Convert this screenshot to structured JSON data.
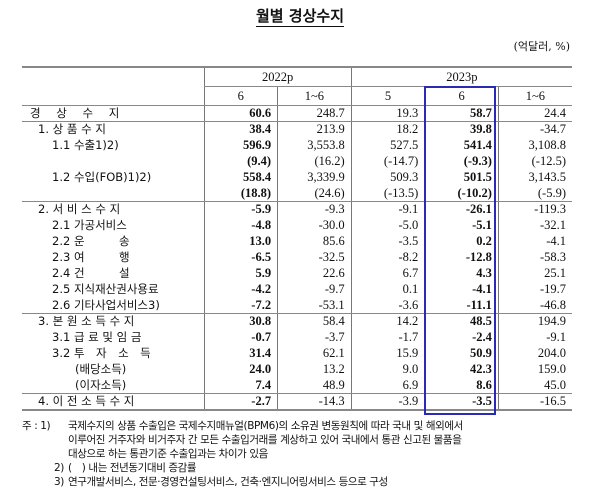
{
  "title": "월별 경상수지",
  "unit": "(억달러, %)",
  "header": {
    "years": [
      "2022p",
      "2023p"
    ],
    "months": [
      "6",
      "1~6",
      "5",
      "6",
      "1~6"
    ]
  },
  "rows": [
    {
      "label": "경 상 수 지",
      "indent": 0,
      "values": [
        "60.6",
        "248.7",
        "19.3",
        "58.7",
        "24.4"
      ]
    },
    {
      "label": "1. 상 품 수 지",
      "indent": 1,
      "values": [
        "38.4",
        "213.9",
        "18.2",
        "39.8",
        "-34.7"
      ]
    },
    {
      "label": "1.1 수출1)2)",
      "indent": 2,
      "values": [
        "596.9",
        "3,553.8",
        "527.5",
        "541.4",
        "3,108.8"
      ]
    },
    {
      "label": "",
      "indent": 2,
      "values": [
        "(9.4)",
        "(16.2)",
        "(-14.7)",
        "(-9.3)",
        "(-12.5)"
      ]
    },
    {
      "label": "1.2 수입(FOB)1)2)",
      "indent": 2,
      "values": [
        "558.4",
        "3,339.9",
        "509.3",
        "501.5",
        "3,143.5"
      ]
    },
    {
      "label": "",
      "indent": 2,
      "values": [
        "(18.8)",
        "(24.6)",
        "(-13.5)",
        "(-10.2)",
        "(-5.9)"
      ]
    },
    {
      "label": "2. 서 비 스 수 지",
      "indent": 1,
      "values": [
        "-5.9",
        "-9.3",
        "-9.1",
        "-26.1",
        "-119.3"
      ]
    },
    {
      "label": "2.1 가공서비스",
      "indent": 2,
      "values": [
        "-4.8",
        "-30.0",
        "-5.0",
        "-5.1",
        "-32.1"
      ]
    },
    {
      "label": "2.2 운　　　송",
      "indent": 2,
      "values": [
        "13.0",
        "85.6",
        "-3.5",
        "0.2",
        "-4.1"
      ]
    },
    {
      "label": "2.3 여　　　행",
      "indent": 2,
      "values": [
        "-6.5",
        "-32.5",
        "-8.2",
        "-12.8",
        "-58.3"
      ]
    },
    {
      "label": "2.4 건　　　설",
      "indent": 2,
      "values": [
        "5.9",
        "22.6",
        "6.7",
        "4.3",
        "25.1"
      ]
    },
    {
      "label": "2.5 지식재산권사용료",
      "indent": 2,
      "values": [
        "-4.2",
        "-9.7",
        "0.1",
        "-4.1",
        "-19.7"
      ]
    },
    {
      "label": "2.6 기타사업서비스3)",
      "indent": 2,
      "values": [
        "-7.2",
        "-53.1",
        "-3.6",
        "-11.1",
        "-46.8"
      ]
    },
    {
      "label": "3. 본 원 소 득 수 지",
      "indent": 1,
      "values": [
        "30.8",
        "58.4",
        "14.2",
        "48.5",
        "194.9"
      ]
    },
    {
      "label": "3.1 급 료 및 임 금",
      "indent": 2,
      "values": [
        "-0.7",
        "-3.7",
        "-1.7",
        "-2.4",
        "-9.1"
      ]
    },
    {
      "label": "3.2 투　자　소　득",
      "indent": 2,
      "values": [
        "31.4",
        "62.1",
        "15.9",
        "50.9",
        "204.0"
      ]
    },
    {
      "label": "(배당소득)",
      "indent": 3,
      "values": [
        "24.0",
        "13.2",
        "9.0",
        "42.3",
        "159.0"
      ]
    },
    {
      "label": "(이자소득)",
      "indent": 3,
      "values": [
        "7.4",
        "48.9",
        "6.9",
        "8.6",
        "45.0"
      ]
    },
    {
      "label": "4. 이 전 소 득 수 지",
      "indent": 1,
      "values": [
        "-2.7",
        "-14.3",
        "-3.9",
        "-3.5",
        "-16.5"
      ]
    }
  ],
  "notes": {
    "prefix": "주 : 1)",
    "n1_lines": [
      "국제수지의 상품 수출입은 국제수지매뉴얼(BPM6)의 소유권 변동원칙에 따라 국내 및 해외에서",
      "이루어진 거주자와 비거주자 간 모든 수출입거래를 계상하고 있어 국내에서 통관 신고된 물품을",
      "대상으로 하는 통관기준 수출입과는 차이가 있음"
    ],
    "n2_num": "2)",
    "n2": "(　) 내는 전년동기대비 증감률",
    "n3_num": "3)",
    "n3": "연구개발서비스, 전문·경영컨설팅서비스, 건축·엔지니어링서비스 등으로 구성"
  },
  "highlight_color": "#2a2ab8"
}
